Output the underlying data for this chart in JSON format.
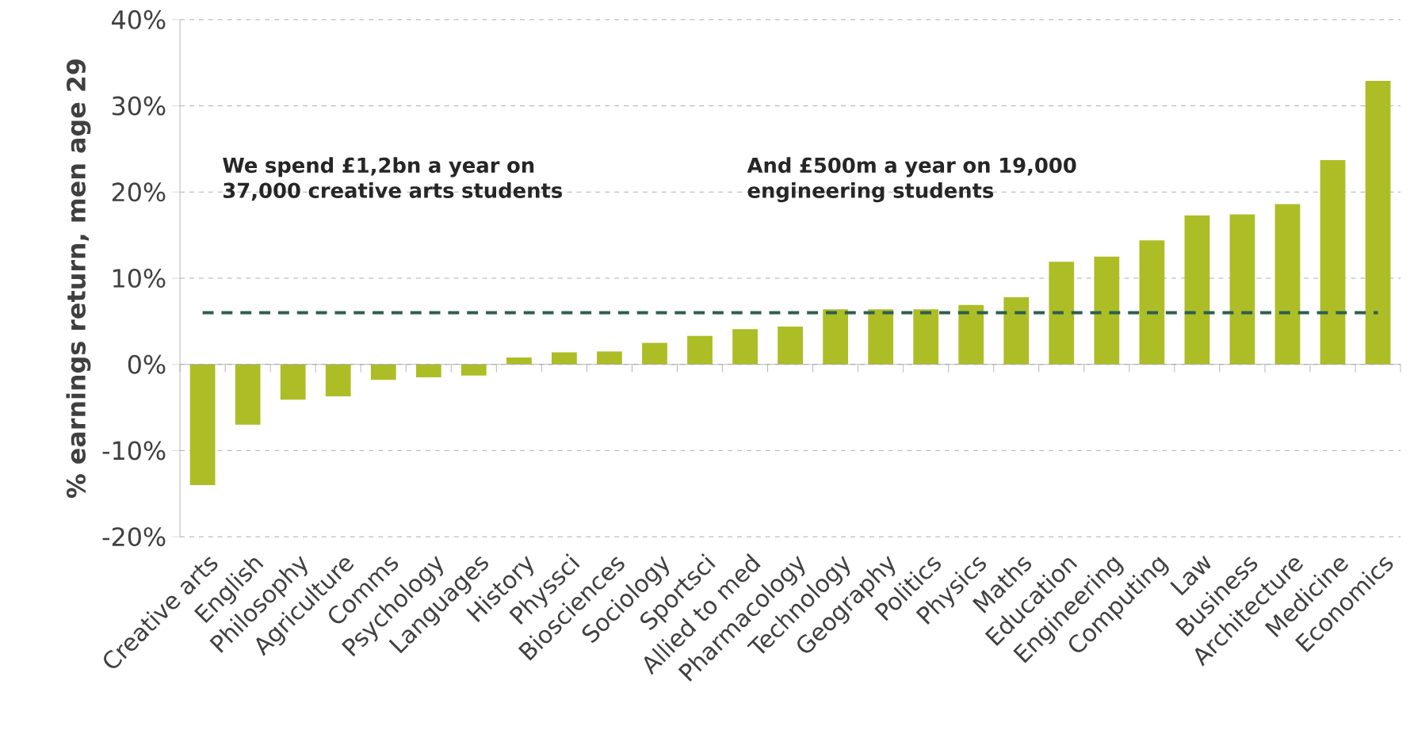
{
  "chart_data": {
    "type": "bar",
    "ylabel": "% earnings return, men age 29",
    "categories": [
      "Creative arts",
      "English",
      "Philosophy",
      "Agriculture",
      "Comms",
      "Psychology",
      "Languages",
      "History",
      "Physsci",
      "Biosciences",
      "Sociology",
      "Sportsci",
      "Allied to med",
      "Pharmacology",
      "Technology",
      "Geography",
      "Politics",
      "Physics",
      "Maths",
      "Education",
      "Engineering",
      "Computing",
      "Law",
      "Business",
      "Architecture",
      "Medicine",
      "Economics"
    ],
    "values": [
      -14.0,
      -7.0,
      -4.1,
      -3.7,
      -1.8,
      -1.5,
      -1.3,
      0.8,
      1.4,
      1.5,
      2.5,
      3.3,
      4.1,
      4.4,
      6.4,
      6.4,
      6.4,
      6.9,
      7.8,
      11.9,
      12.5,
      14.4,
      17.3,
      17.4,
      18.6,
      23.7,
      32.9
    ],
    "color": "#adbd26",
    "ylim": [
      -20,
      40
    ],
    "yticks": [
      {
        "value": -20,
        "label": "-20%"
      },
      {
        "value": -10,
        "label": "-10%"
      },
      {
        "value": 0,
        "label": "0%"
      },
      {
        "value": 10,
        "label": "10%"
      },
      {
        "value": 20,
        "label": "20%"
      },
      {
        "value": 30,
        "label": "30%"
      },
      {
        "value": 40,
        "label": "40%"
      }
    ],
    "grid": "y",
    "ref_lines": [
      {
        "axis": "y",
        "value": 6,
        "color": "#2e5e4e",
        "line_style": "dashed"
      }
    ],
    "annotations": [
      "We spend £1,2bn a year on 37,000 creative arts students",
      "And £500m a year on 19,000 engineering students"
    ]
  }
}
